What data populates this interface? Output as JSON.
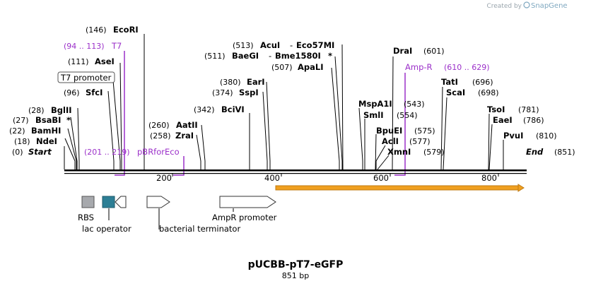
{
  "header": {
    "credit_prefix": "Created by",
    "brand": "SnapGene"
  },
  "plasmid": {
    "name": "pUCBB-pT7-eGFP",
    "length_label": "851 bp"
  },
  "ruler": {
    "start": 0,
    "end": 851,
    "ticks": [
      {
        "value": 200,
        "label": "200"
      },
      {
        "value": 400,
        "label": "400"
      },
      {
        "value": 600,
        "label": "600"
      },
      {
        "value": 800,
        "label": "800"
      }
    ]
  },
  "left_labels": {
    "start": {
      "pos": "(0)",
      "name": "Start"
    },
    "ndei": {
      "pos": "(18)",
      "name": "NdeI"
    },
    "bamhi": {
      "pos": "(22)",
      "name": "BamHI"
    },
    "bsabi": {
      "pos": "(27)",
      "name": "BsaBI",
      "star": "*"
    },
    "bglii": {
      "pos": "(28)",
      "name": "BglII"
    },
    "sfci": {
      "pos": "(96)",
      "name": "SfcI"
    },
    "t7promoter": {
      "name": "T7 promoter"
    },
    "asei": {
      "pos": "(111)",
      "name": "AseI"
    },
    "t7": {
      "range": "(94 .. 113)",
      "name": "T7"
    },
    "ecori": {
      "pos": "(146)",
      "name": "EcoRI"
    }
  },
  "primer_pbr": {
    "range": "(201 .. 219)",
    "name": "pBRforEco"
  },
  "mid_labels": {
    "zrai": {
      "pos": "(258)",
      "name": "ZraI"
    },
    "aatii": {
      "pos": "(260)",
      "name": "AatII"
    },
    "bcivi": {
      "pos": "(342)",
      "name": "BciVI"
    },
    "sspi": {
      "pos": "(374)",
      "name": "SspI"
    },
    "eari": {
      "pos": "(380)",
      "name": "EarI"
    },
    "apali": {
      "pos": "(507)",
      "name": "ApaLI"
    },
    "baegi": {
      "pos": "(511)",
      "name": "BaeGI",
      "sep": "-",
      "name2": "Bme1580I",
      "star": "*"
    },
    "acui": {
      "pos": "(513)",
      "name": "AcuI",
      "sep": "-",
      "name2": "Eco57MI"
    }
  },
  "right_labels": {
    "xmni": {
      "pos": "(579)",
      "name": "XmnI"
    },
    "acli": {
      "pos": "(577)",
      "name": "AclI"
    },
    "bpuei": {
      "pos": "(575)",
      "name": "BpuEI"
    },
    "smli": {
      "pos": "(554)",
      "name": "SmlI"
    },
    "mspa1i": {
      "pos": "(543)",
      "name": "MspA1I"
    },
    "ampr_primer": {
      "name": "Amp-R",
      "range": "(610 .. 629)"
    },
    "drai": {
      "pos": "(601)",
      "name": "DraI"
    },
    "scai": {
      "pos": "(698)",
      "name": "ScaI"
    },
    "tati": {
      "pos": "(696)",
      "name": "TatI"
    },
    "pvui": {
      "pos": "(810)",
      "name": "PvuI"
    },
    "eaei": {
      "pos": "(786)",
      "name": "EaeI"
    },
    "tsoi": {
      "pos": "(781)",
      "name": "TsoI"
    },
    "end": {
      "pos": "(851)",
      "name": "End"
    }
  },
  "features": {
    "rbs": {
      "label": "RBS",
      "color": "#a7a9ad"
    },
    "lac_operator": {
      "label": "lac operator",
      "color": "#2d7f95"
    },
    "bacterial_terminator": {
      "label": "bacterial terminator"
    },
    "ampr_promoter": {
      "label": "AmpR promoter"
    },
    "orange_feature": {
      "color": "#f0a020"
    }
  }
}
